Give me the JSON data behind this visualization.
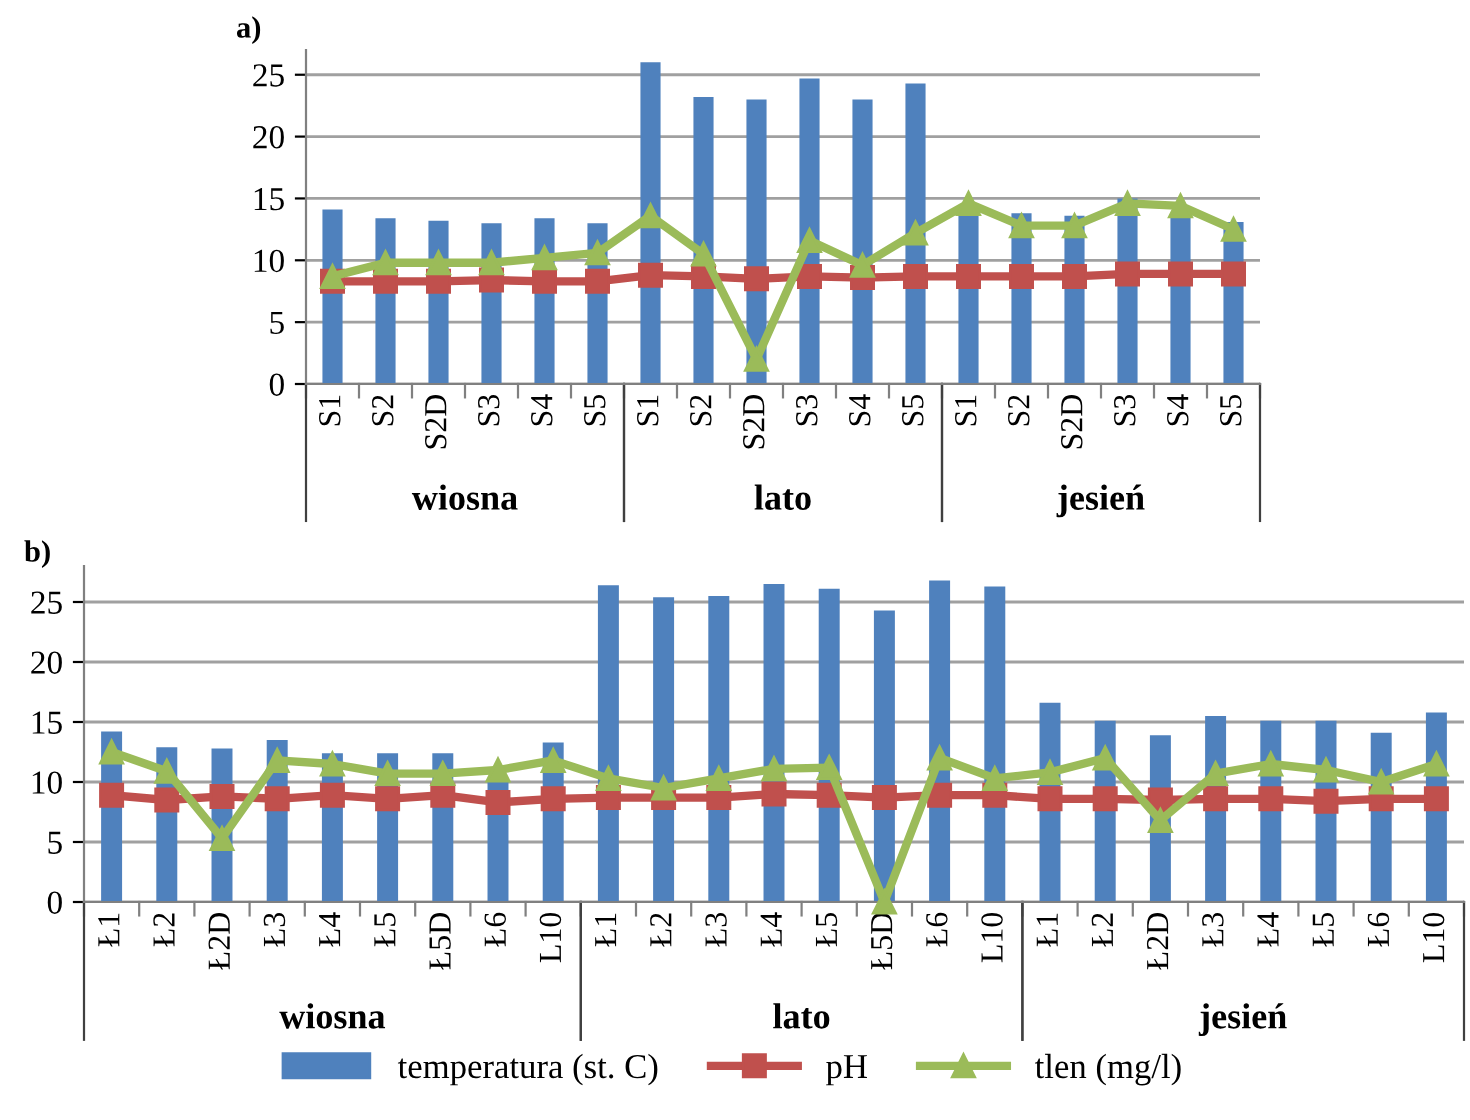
{
  "chart_data": [
    {
      "type": "bar",
      "title": "a)",
      "categories": [
        "S1",
        "S2",
        "S2D",
        "S3",
        "S4",
        "S5",
        "S1",
        "S2",
        "S2D",
        "S3",
        "S4",
        "S5",
        "S1",
        "S2",
        "S2D",
        "S3",
        "S4",
        "S5"
      ],
      "series": [
        {
          "color": "#4f81bd",
          "values": [
            14.1,
            13.4,
            13.2,
            13.0,
            13.4,
            13.0,
            26.0,
            23.2,
            23.0,
            24.7,
            23.0,
            24.3,
            13.9,
            13.8,
            13.6,
            15.0,
            13.7,
            13.1
          ]
        },
        {
          "type": "line",
          "color": "#c0504d",
          "marker": "square",
          "values": [
            8.3,
            8.3,
            8.3,
            8.4,
            8.3,
            8.3,
            8.8,
            8.7,
            8.5,
            8.7,
            8.6,
            8.7,
            8.7,
            8.7,
            8.7,
            8.9,
            8.9,
            8.9
          ]
        },
        {
          "type": "line",
          "color": "#9bbb59",
          "marker": "triangle",
          "values": [
            8.7,
            9.8,
            9.8,
            9.8,
            10.2,
            10.6,
            13.6,
            10.5,
            2.0,
            11.6,
            9.6,
            12.2,
            14.6,
            12.8,
            12.8,
            14.6,
            14.4,
            12.5
          ]
        }
      ],
      "annotations": [
        "wiosna",
        "lato",
        "jesień"
      ],
      "ylim": [
        0,
        27
      ],
      "yticks": [
        0,
        5,
        10,
        15,
        20,
        25
      ],
      "grid": "y",
      "legend": false
    },
    {
      "type": "bar",
      "title": "b)",
      "categories": [
        "Ł1",
        "Ł2",
        "Ł2D",
        "Ł3",
        "Ł4",
        "Ł5",
        "Ł5D",
        "Ł6",
        "L10",
        "Ł1",
        "Ł2",
        "Ł3",
        "Ł4",
        "Ł5",
        "Ł5D",
        "Ł6",
        "L10",
        "Ł1",
        "Ł2",
        "Ł2D",
        "Ł3",
        "Ł4",
        "Ł5",
        "Ł6",
        "L10"
      ],
      "series": [
        {
          "name": "temperatura (st. C)",
          "color": "#4f81bd",
          "values": [
            14.2,
            12.9,
            12.8,
            13.5,
            12.4,
            12.4,
            12.4,
            10.0,
            13.3,
            26.4,
            25.4,
            25.5,
            26.5,
            26.1,
            24.3,
            26.8,
            26.3,
            16.6,
            15.1,
            13.9,
            15.5,
            15.1,
            15.1,
            14.1,
            15.8
          ]
        },
        {
          "name": "pH",
          "type": "line",
          "color": "#c0504d",
          "marker": "square",
          "values": [
            8.9,
            8.5,
            8.8,
            8.6,
            8.9,
            8.6,
            8.9,
            8.3,
            8.6,
            8.7,
            8.7,
            8.7,
            9.0,
            8.9,
            8.7,
            8.9,
            8.9,
            8.6,
            8.6,
            8.5,
            8.6,
            8.6,
            8.4,
            8.6,
            8.6
          ]
        },
        {
          "name": "tlen (mg/l)",
          "type": "line",
          "color": "#9bbb59",
          "marker": "triangle",
          "values": [
            12.5,
            10.9,
            5.3,
            11.8,
            11.5,
            10.7,
            10.7,
            11.0,
            11.8,
            10.3,
            9.5,
            10.3,
            11.1,
            11.2,
            0.0,
            12.0,
            10.3,
            10.8,
            12.0,
            6.8,
            10.7,
            11.5,
            11.0,
            10.0,
            11.5
          ]
        }
      ],
      "annotations": [
        "wiosna",
        "lato",
        "jesień"
      ],
      "ylim": [
        0,
        28
      ],
      "yticks": [
        0,
        5,
        10,
        15,
        20,
        25
      ],
      "grid": "y",
      "legend": "bottom"
    }
  ]
}
